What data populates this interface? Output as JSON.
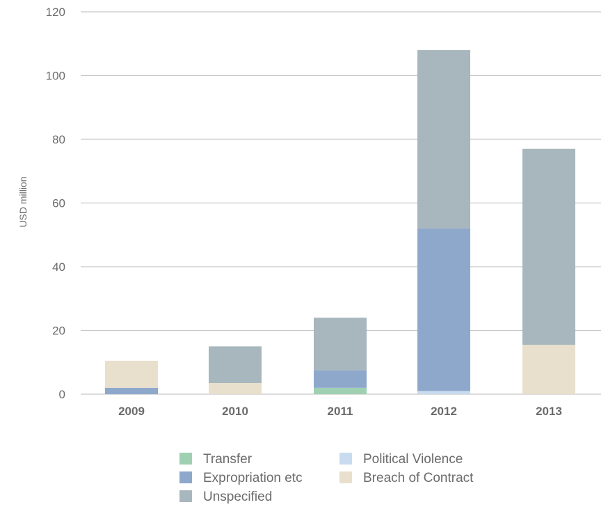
{
  "chart_data": {
    "type": "bar",
    "stacked": true,
    "title": "",
    "xlabel": "",
    "ylabel": "USD million",
    "ylim": [
      0,
      120
    ],
    "yticks": [
      0,
      20,
      40,
      60,
      80,
      100,
      120
    ],
    "grid": true,
    "legend_position": "bottom",
    "categories": [
      "2009",
      "2010",
      "2011",
      "2012",
      "2013"
    ],
    "series": [
      {
        "name": "Transfer",
        "color": "#9fd0b2",
        "values": [
          0,
          0,
          2,
          0,
          0
        ]
      },
      {
        "name": "Political Violence",
        "color": "#c9dcef",
        "values": [
          0,
          0,
          0,
          1,
          0
        ]
      },
      {
        "name": "Expropriation etc",
        "color": "#8ea8cb",
        "values": [
          2,
          0,
          5.5,
          51,
          0
        ]
      },
      {
        "name": "Breach of Contract",
        "color": "#e8e0cd",
        "values": [
          8.5,
          3.5,
          0,
          0,
          15.5
        ]
      },
      {
        "name": "Unspecified",
        "color": "#a8b7bd",
        "values": [
          0,
          11.5,
          16.5,
          56,
          61.5
        ]
      }
    ],
    "legend_order": [
      "Transfer",
      "Political Violence",
      "Expropriation etc",
      "Breach of Contract",
      "Unspecified"
    ]
  }
}
